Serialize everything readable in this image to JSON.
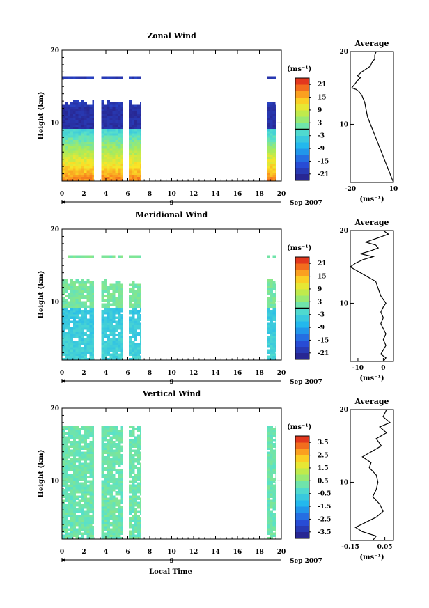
{
  "figure": {
    "xlabel_bottom": "Local Time"
  },
  "chart_data": [
    {
      "type": "heatmap",
      "title": "Zonal Wind",
      "ylabel": "Height (km)",
      "xlim": [
        0,
        20
      ],
      "ylim": [
        2,
        20
      ],
      "x_ticks": [
        0,
        2,
        4,
        6,
        8,
        10,
        12,
        14,
        16,
        18,
        20
      ],
      "y_ticks": [
        10,
        20
      ],
      "date_label": "9",
      "date_suffix": "Sep 2007",
      "colorbar": {
        "unit": "(ms⁻¹)",
        "min": -24,
        "max": 24,
        "ticks": [
          21,
          15,
          9,
          3,
          -3,
          -9,
          -15,
          -21
        ],
        "contour_at": 0
      },
      "pattern": {
        "surface_value": 18,
        "jet_value": -21,
        "lapse": 3.0
      },
      "data_bands": [
        [
          0,
          2.9
        ],
        [
          3.6,
          5.5
        ],
        [
          6.1,
          7.2
        ],
        [
          18.7,
          19.5
        ]
      ],
      "profile": {
        "title": "Average",
        "xlabel": "(ms⁻¹)",
        "xlim": [
          -20,
          10
        ],
        "x_ticks": [
          -20,
          10
        ],
        "y_ticks": [
          10,
          20
        ],
        "points": [
          [
            10,
            2
          ],
          [
            9,
            2.5
          ],
          [
            8,
            3
          ],
          [
            6,
            4
          ],
          [
            4,
            5
          ],
          [
            2,
            6
          ],
          [
            0,
            7
          ],
          [
            -2,
            8
          ],
          [
            -4,
            9
          ],
          [
            -6,
            10
          ],
          [
            -8,
            11
          ],
          [
            -9,
            12
          ],
          [
            -10,
            13
          ],
          [
            -12,
            14
          ],
          [
            -14,
            14.5
          ],
          [
            -16,
            14.8
          ],
          [
            -19,
            15
          ],
          [
            -17,
            15.5
          ],
          [
            -15,
            16
          ],
          [
            -13,
            16.4
          ],
          [
            -15,
            16.7
          ],
          [
            -12,
            17.2
          ],
          [
            -9,
            17.6
          ],
          [
            -6,
            18
          ],
          [
            -5,
            18.5
          ],
          [
            -3,
            19
          ],
          [
            -3,
            19.5
          ],
          [
            -2,
            20
          ]
        ]
      }
    },
    {
      "type": "heatmap",
      "title": "Meridional Wind",
      "ylabel": "Height (km)",
      "xlim": [
        0,
        20
      ],
      "ylim": [
        2,
        20
      ],
      "x_ticks": [
        0,
        2,
        4,
        6,
        8,
        10,
        12,
        14,
        16,
        18,
        20
      ],
      "y_ticks": [
        10,
        20
      ],
      "date_label": "9",
      "date_suffix": "Sep 2007",
      "colorbar": {
        "unit": "(ms⁻¹)",
        "min": -24,
        "max": 24,
        "ticks": [
          21,
          15,
          9,
          3,
          -3,
          -9,
          -15,
          -21
        ],
        "contour_at": 0
      },
      "pattern": {
        "surface_value": -3,
        "jet_value": 2,
        "lapse": 0.3
      },
      "data_bands": [
        [
          0,
          2.9
        ],
        [
          3.6,
          5.5
        ],
        [
          6.1,
          7.2
        ],
        [
          18.7,
          19.5
        ]
      ],
      "profile": {
        "title": "Average",
        "xlabel": "(ms⁻¹)",
        "xlim": [
          -13,
          4
        ],
        "x_ticks": [
          -10,
          0
        ],
        "y_ticks": [
          10,
          20
        ],
        "points": [
          [
            0,
            2
          ],
          [
            1,
            2.5
          ],
          [
            -1,
            3
          ],
          [
            0,
            3.6
          ],
          [
            1,
            4.2
          ],
          [
            0,
            5
          ],
          [
            1,
            5.8
          ],
          [
            0,
            6.5
          ],
          [
            -1,
            7.2
          ],
          [
            0,
            8
          ],
          [
            -1,
            8.8
          ],
          [
            0,
            9.5
          ],
          [
            1,
            10
          ],
          [
            -1,
            11
          ],
          [
            -2,
            12
          ],
          [
            -3,
            13
          ],
          [
            -8,
            14
          ],
          [
            -13,
            15
          ],
          [
            -11,
            15.5
          ],
          [
            -8,
            16
          ],
          [
            -4,
            16.4
          ],
          [
            -9,
            16.8
          ],
          [
            -5,
            17.2
          ],
          [
            -2,
            17.6
          ],
          [
            -3,
            18
          ],
          [
            -7,
            18.4
          ],
          [
            -2,
            19
          ],
          [
            2,
            19.5
          ],
          [
            0,
            20
          ]
        ]
      }
    },
    {
      "type": "heatmap",
      "title": "Vertical Wind",
      "ylabel": "Height (km)",
      "xlim": [
        0,
        20
      ],
      "ylim": [
        2,
        20
      ],
      "x_ticks": [
        0,
        2,
        4,
        6,
        8,
        10,
        12,
        14,
        16,
        18,
        20
      ],
      "y_ticks": [
        10,
        20
      ],
      "date_label": "9",
      "date_suffix": "Sep 2007",
      "colorbar": {
        "unit": "(ms⁻¹)",
        "min": -4,
        "max": 4,
        "ticks": [
          3.5,
          2.5,
          1.5,
          0.5,
          -0.5,
          -1.5,
          -2.5,
          -3.5
        ]
      },
      "pattern": {
        "surface_value": 0.2,
        "jet_value": 0.2,
        "lapse": 0.0
      },
      "data_bands": [
        [
          0,
          2.9
        ],
        [
          3.6,
          5.5
        ],
        [
          6.1,
          7.2
        ],
        [
          18.7,
          19.5
        ]
      ],
      "profile": {
        "title": "Average",
        "xlabel": "(ms⁻¹)",
        "xlim": [
          -0.15,
          0.1
        ],
        "x_ticks": [
          -0.15,
          0.05
        ],
        "y_ticks": [
          10,
          20
        ],
        "points": [
          [
            -0.02,
            2
          ],
          [
            0.0,
            2.6
          ],
          [
            -0.08,
            3.2
          ],
          [
            -0.12,
            3.8
          ],
          [
            -0.06,
            4.5
          ],
          [
            0.0,
            5.2
          ],
          [
            0.04,
            6
          ],
          [
            0.02,
            7
          ],
          [
            -0.02,
            8
          ],
          [
            0.0,
            9
          ],
          [
            0.01,
            10
          ],
          [
            0.0,
            11
          ],
          [
            -0.04,
            12
          ],
          [
            -0.03,
            12.7
          ],
          [
            -0.08,
            13.5
          ],
          [
            -0.02,
            14.3
          ],
          [
            0.03,
            15
          ],
          [
            0.0,
            16
          ],
          [
            0.06,
            16.8
          ],
          [
            0.02,
            17.6
          ],
          [
            0.08,
            18.2
          ],
          [
            0.04,
            19
          ],
          [
            0.06,
            20
          ]
        ]
      }
    }
  ]
}
